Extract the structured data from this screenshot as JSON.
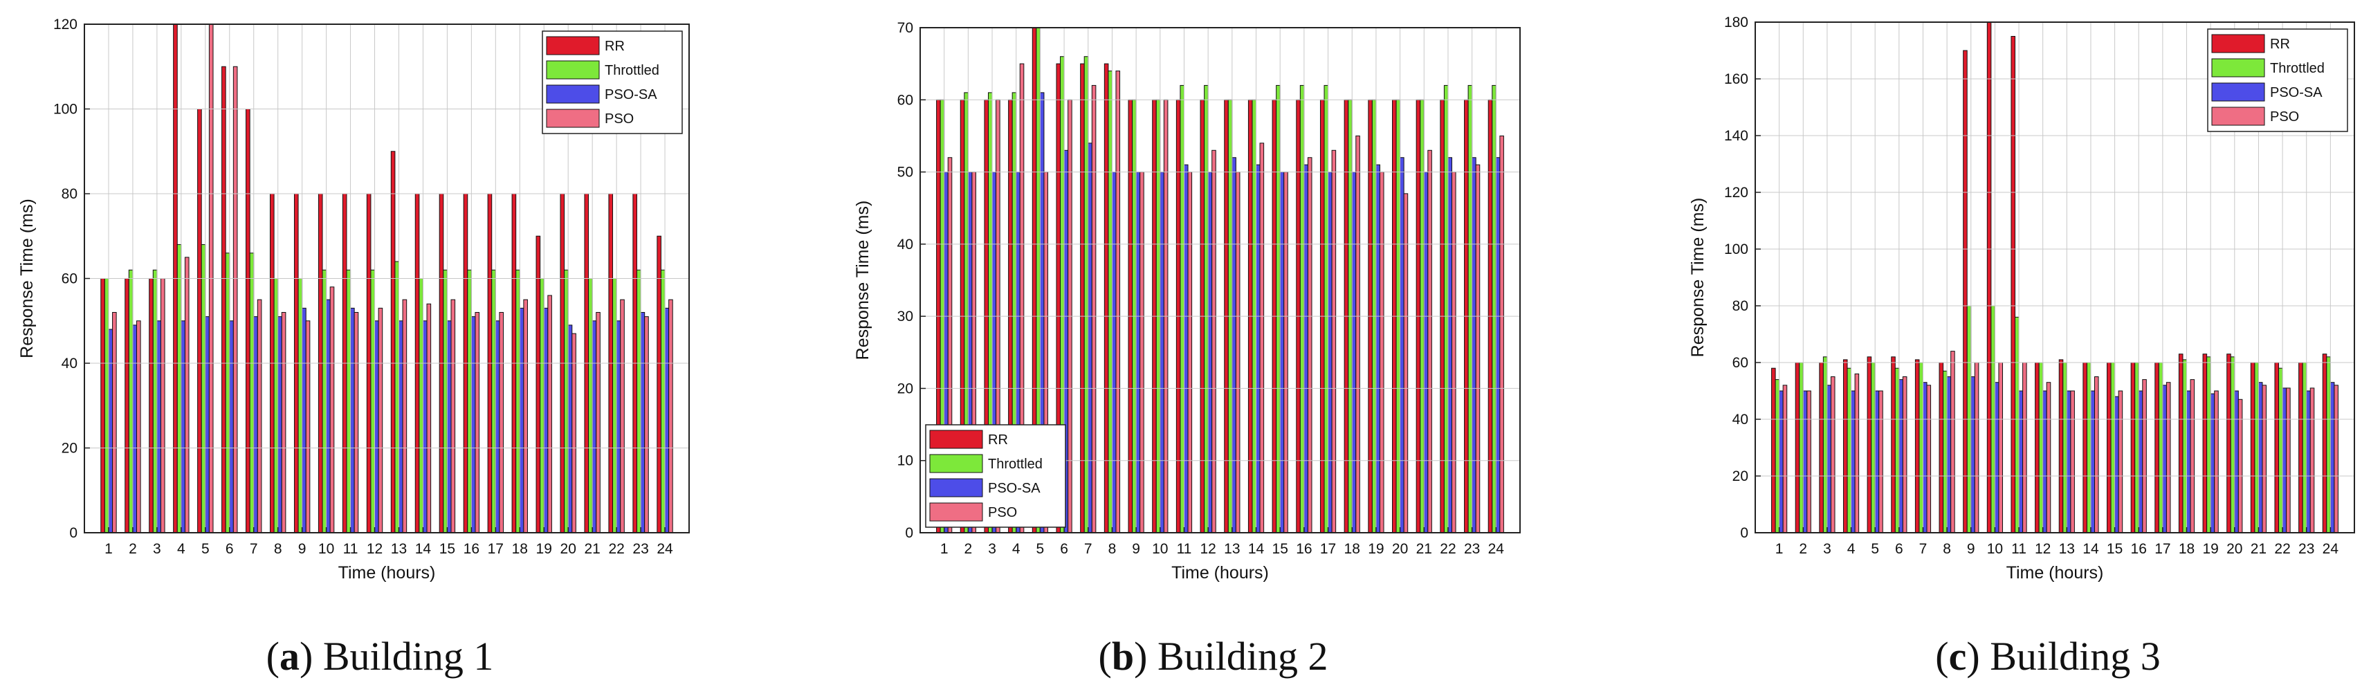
{
  "colors": {
    "RR": "#e01b2b",
    "Throttled": "#7de83a",
    "PSO-SA": "#4d4de8",
    "PSO": "#ef6e84"
  },
  "chart_data": [
    {
      "type": "bar",
      "caption_letter": "a",
      "caption_text": "Building 1",
      "xlabel": "Time (hours)",
      "ylabel": "Response Time (ms)",
      "ylim": [
        0,
        120
      ],
      "yticks": [
        0,
        20,
        40,
        60,
        80,
        100,
        120
      ],
      "legend_position": "top-right",
      "categories": [
        "1",
        "2",
        "3",
        "4",
        "5",
        "6",
        "7",
        "8",
        "9",
        "10",
        "11",
        "12",
        "13",
        "14",
        "15",
        "16",
        "17",
        "18",
        "19",
        "20",
        "21",
        "22",
        "23",
        "24"
      ],
      "series": [
        {
          "name": "RR",
          "values": [
            60,
            60,
            60,
            120,
            100,
            110,
            100,
            80,
            80,
            80,
            80,
            80,
            90,
            80,
            80,
            80,
            80,
            80,
            70,
            80,
            80,
            80,
            80,
            70
          ]
        },
        {
          "name": "Throttled",
          "values": [
            60,
            62,
            62,
            68,
            68,
            66,
            66,
            60,
            60,
            62,
            62,
            62,
            64,
            60,
            62,
            62,
            62,
            62,
            60,
            62,
            60,
            60,
            62,
            62
          ]
        },
        {
          "name": "PSO-SA",
          "values": [
            48,
            49,
            50,
            50,
            51,
            50,
            51,
            51,
            53,
            55,
            53,
            50,
            50,
            50,
            50,
            51,
            50,
            53,
            53,
            49,
            50,
            50,
            52,
            53
          ]
        },
        {
          "name": "PSO",
          "values": [
            52,
            50,
            60,
            65,
            120,
            110,
            55,
            52,
            50,
            58,
            52,
            53,
            55,
            54,
            55,
            52,
            52,
            55,
            56,
            47,
            52,
            55,
            51,
            55
          ]
        }
      ]
    },
    {
      "type": "bar",
      "caption_letter": "b",
      "caption_text": "Building 2",
      "xlabel": "Time (hours)",
      "ylabel": "Response Time (ms)",
      "ylim": [
        0,
        70
      ],
      "yticks": [
        0,
        10,
        20,
        30,
        40,
        50,
        60,
        70
      ],
      "legend_position": "bottom-left",
      "categories": [
        "1",
        "2",
        "3",
        "4",
        "5",
        "6",
        "7",
        "8",
        "9",
        "10",
        "11",
        "12",
        "13",
        "14",
        "15",
        "16",
        "17",
        "18",
        "19",
        "20",
        "21",
        "22",
        "23",
        "24"
      ],
      "series": [
        {
          "name": "RR",
          "values": [
            60,
            60,
            60,
            60,
            70,
            65,
            65,
            65,
            60,
            60,
            60,
            60,
            60,
            60,
            60,
            60,
            60,
            60,
            60,
            60,
            60,
            60,
            60,
            60
          ]
        },
        {
          "name": "Throttled",
          "values": [
            60,
            61,
            61,
            61,
            70,
            66,
            66,
            64,
            60,
            60,
            62,
            62,
            60,
            60,
            62,
            62,
            62,
            60,
            60,
            60,
            60,
            62,
            62,
            62
          ]
        },
        {
          "name": "PSO-SA",
          "values": [
            50,
            50,
            50,
            50,
            61,
            53,
            54,
            50,
            50,
            50,
            51,
            50,
            52,
            51,
            50,
            51,
            50,
            50,
            51,
            52,
            50,
            52,
            52,
            52
          ]
        },
        {
          "name": "PSO",
          "values": [
            52,
            50,
            60,
            65,
            50,
            60,
            62,
            64,
            50,
            60,
            50,
            53,
            50,
            54,
            50,
            52,
            53,
            55,
            50,
            47,
            53,
            50,
            51,
            55
          ]
        }
      ]
    },
    {
      "type": "bar",
      "caption_letter": "c",
      "caption_text": "Building 3",
      "xlabel": "Time (hours)",
      "ylabel": "Response Time (ms)",
      "ylim": [
        0,
        180
      ],
      "yticks": [
        0,
        20,
        40,
        60,
        80,
        100,
        120,
        140,
        160,
        180
      ],
      "legend_position": "top-right",
      "categories": [
        "1",
        "2",
        "3",
        "4",
        "5",
        "6",
        "7",
        "8",
        "9",
        "10",
        "11",
        "12",
        "13",
        "14",
        "15",
        "16",
        "17",
        "18",
        "19",
        "20",
        "21",
        "22",
        "23",
        "24"
      ],
      "series": [
        {
          "name": "RR",
          "values": [
            58,
            60,
            60,
            61,
            62,
            62,
            61,
            60,
            170,
            180,
            175,
            60,
            61,
            60,
            60,
            60,
            60,
            63,
            63,
            63,
            60,
            60,
            60,
            63
          ]
        },
        {
          "name": "Throttled",
          "values": [
            54,
            60,
            62,
            58,
            60,
            58,
            60,
            57,
            80,
            80,
            76,
            60,
            60,
            60,
            60,
            60,
            60,
            61,
            62,
            62,
            60,
            58,
            60,
            62
          ]
        },
        {
          "name": "PSO-SA",
          "values": [
            50,
            50,
            52,
            50,
            50,
            54,
            53,
            55,
            55,
            53,
            50,
            50,
            50,
            50,
            48,
            50,
            52,
            50,
            49,
            50,
            53,
            51,
            50,
            53
          ]
        },
        {
          "name": "PSO",
          "values": [
            52,
            50,
            55,
            56,
            50,
            55,
            52,
            64,
            60,
            60,
            60,
            53,
            50,
            55,
            50,
            54,
            53,
            54,
            50,
            47,
            52,
            51,
            51,
            52
          ]
        }
      ]
    }
  ]
}
